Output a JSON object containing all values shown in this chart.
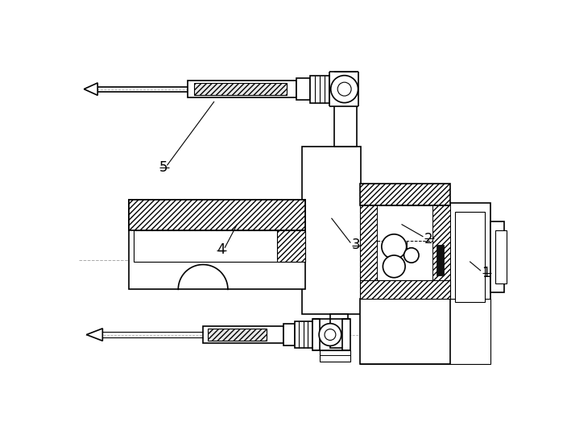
{
  "bg_color": "#ffffff",
  "line_color": "#000000",
  "fig_width": 7.09,
  "fig_height": 5.24,
  "dpi": 100
}
